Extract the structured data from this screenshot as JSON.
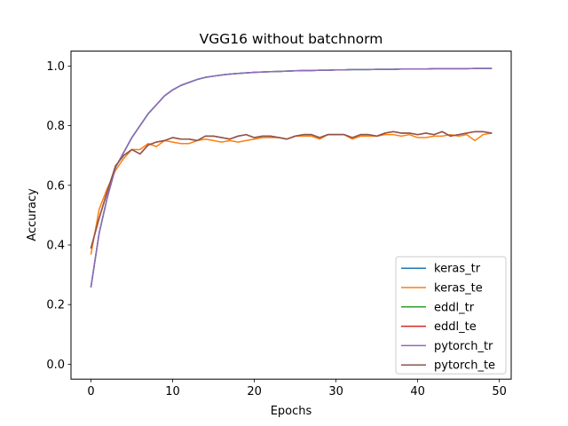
{
  "chart_data": {
    "type": "line",
    "title": "VGG16 without batchnorm",
    "xlabel": "Epochs",
    "ylabel": "Accuracy",
    "xlim": [
      -2.45,
      51.45
    ],
    "ylim": [
      -0.05,
      1.05
    ],
    "xticks": [
      0,
      10,
      20,
      30,
      40,
      50
    ],
    "yticks": [
      0.0,
      0.2,
      0.4,
      0.6,
      0.8,
      1.0
    ],
    "ytick_labels": [
      "0.0",
      "0.2",
      "0.4",
      "0.6",
      "0.8",
      "1.0"
    ],
    "grid": false,
    "legend_position": "lower-right",
    "x": [
      0,
      1,
      2,
      3,
      4,
      5,
      6,
      7,
      8,
      9,
      10,
      11,
      12,
      13,
      14,
      15,
      16,
      17,
      18,
      19,
      20,
      21,
      22,
      23,
      24,
      25,
      26,
      27,
      28,
      29,
      30,
      31,
      32,
      33,
      34,
      35,
      36,
      37,
      38,
      39,
      40,
      41,
      42,
      43,
      44,
      45,
      46,
      47,
      48,
      49
    ],
    "series": [
      {
        "name": "keras_tr",
        "color": "#1f77b4",
        "values": [
          0.26,
          0.44,
          0.56,
          0.66,
          0.71,
          0.76,
          0.8,
          0.84,
          0.87,
          0.9,
          0.92,
          0.935,
          0.945,
          0.955,
          0.962,
          0.966,
          0.97,
          0.973,
          0.975,
          0.977,
          0.979,
          0.98,
          0.981,
          0.982,
          0.983,
          0.984,
          0.985,
          0.985,
          0.986,
          0.986,
          0.987,
          0.987,
          0.988,
          0.988,
          0.988,
          0.989,
          0.989,
          0.989,
          0.99,
          0.99,
          0.99,
          0.99,
          0.991,
          0.991,
          0.991,
          0.991,
          0.991,
          0.992,
          0.992,
          0.992
        ]
      },
      {
        "name": "keras_te",
        "color": "#ff7f0e",
        "values": [
          0.37,
          0.52,
          0.59,
          0.65,
          0.69,
          0.72,
          0.72,
          0.74,
          0.73,
          0.75,
          0.745,
          0.74,
          0.74,
          0.75,
          0.755,
          0.75,
          0.745,
          0.75,
          0.745,
          0.75,
          0.755,
          0.76,
          0.76,
          0.76,
          0.755,
          0.765,
          0.765,
          0.765,
          0.755,
          0.77,
          0.77,
          0.77,
          0.755,
          0.765,
          0.765,
          0.765,
          0.77,
          0.77,
          0.765,
          0.77,
          0.76,
          0.76,
          0.765,
          0.765,
          0.77,
          0.765,
          0.77,
          0.75,
          0.77,
          0.775
        ]
      },
      {
        "name": "eddl_tr",
        "color": "#2ca02c",
        "values": [
          0.26,
          0.44,
          0.56,
          0.66,
          0.71,
          0.76,
          0.8,
          0.84,
          0.87,
          0.9,
          0.92,
          0.935,
          0.945,
          0.955,
          0.962,
          0.966,
          0.97,
          0.973,
          0.975,
          0.977,
          0.979,
          0.98,
          0.981,
          0.982,
          0.983,
          0.984,
          0.985,
          0.985,
          0.986,
          0.986,
          0.987,
          0.987,
          0.988,
          0.988,
          0.988,
          0.989,
          0.989,
          0.989,
          0.99,
          0.99,
          0.99,
          0.99,
          0.991,
          0.991,
          0.991,
          0.991,
          0.991,
          0.992,
          0.992,
          0.992
        ]
      },
      {
        "name": "eddl_te",
        "color": "#d62728",
        "values": [
          0.39,
          0.49,
          0.58,
          0.665,
          0.7,
          0.72,
          0.705,
          0.735,
          0.745,
          0.75,
          0.76,
          0.755,
          0.755,
          0.75,
          0.765,
          0.765,
          0.76,
          0.755,
          0.765,
          0.77,
          0.76,
          0.765,
          0.765,
          0.76,
          0.755,
          0.765,
          0.77,
          0.77,
          0.76,
          0.77,
          0.77,
          0.77,
          0.76,
          0.77,
          0.77,
          0.765,
          0.775,
          0.78,
          0.775,
          0.775,
          0.77,
          0.775,
          0.77,
          0.78,
          0.765,
          0.77,
          0.775,
          0.78,
          0.78,
          0.775
        ]
      },
      {
        "name": "pytorch_tr",
        "color": "#9467bd",
        "values": [
          0.26,
          0.44,
          0.56,
          0.66,
          0.71,
          0.76,
          0.8,
          0.84,
          0.87,
          0.9,
          0.92,
          0.935,
          0.945,
          0.955,
          0.962,
          0.966,
          0.97,
          0.973,
          0.975,
          0.977,
          0.979,
          0.98,
          0.981,
          0.982,
          0.983,
          0.984,
          0.985,
          0.985,
          0.986,
          0.986,
          0.987,
          0.987,
          0.988,
          0.988,
          0.988,
          0.989,
          0.989,
          0.989,
          0.99,
          0.99,
          0.99,
          0.99,
          0.991,
          0.991,
          0.991,
          0.991,
          0.991,
          0.992,
          0.992,
          0.992
        ]
      },
      {
        "name": "pytorch_te",
        "color": "#8c564b",
        "values": [
          0.39,
          0.49,
          0.58,
          0.665,
          0.7,
          0.72,
          0.705,
          0.735,
          0.745,
          0.75,
          0.76,
          0.755,
          0.755,
          0.75,
          0.765,
          0.765,
          0.76,
          0.755,
          0.765,
          0.77,
          0.76,
          0.765,
          0.765,
          0.76,
          0.755,
          0.765,
          0.77,
          0.77,
          0.76,
          0.77,
          0.77,
          0.77,
          0.76,
          0.77,
          0.77,
          0.765,
          0.775,
          0.78,
          0.775,
          0.775,
          0.77,
          0.775,
          0.77,
          0.78,
          0.765,
          0.77,
          0.775,
          0.78,
          0.78,
          0.775
        ]
      }
    ]
  }
}
